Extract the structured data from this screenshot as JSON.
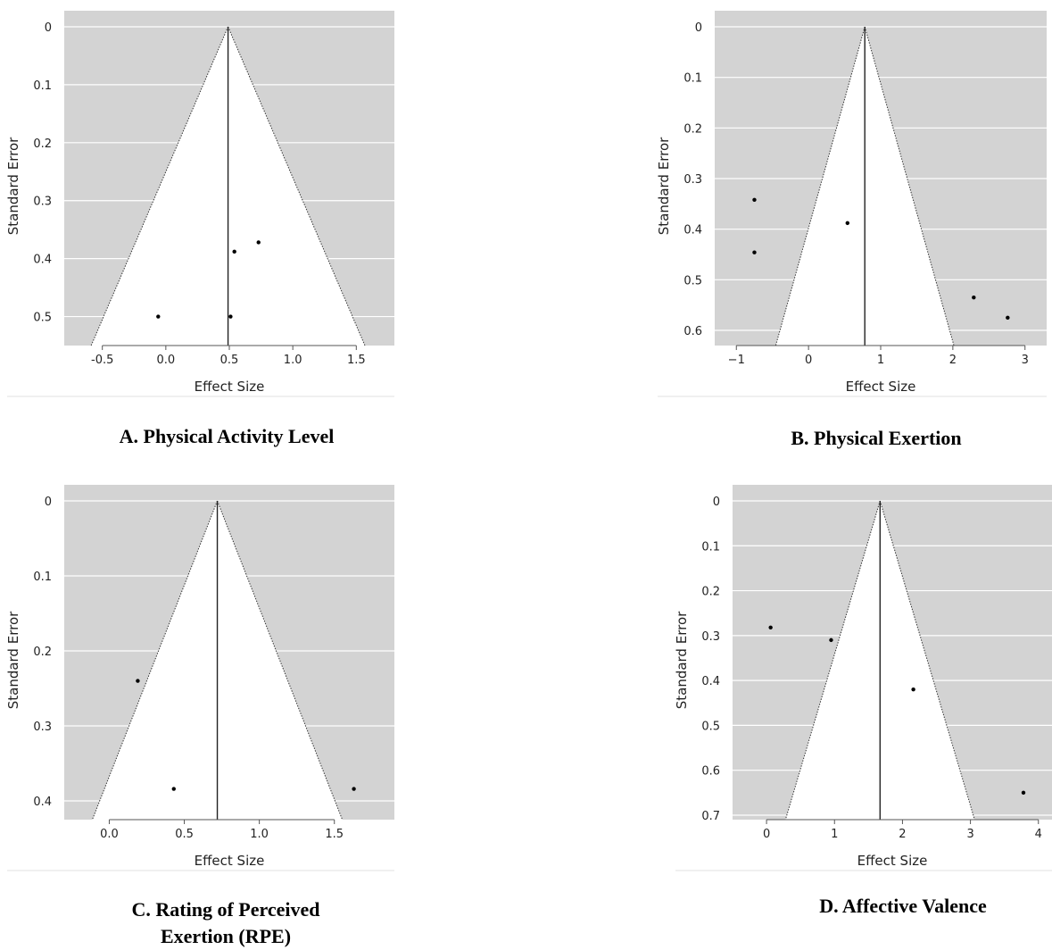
{
  "chart_data": [
    {
      "id": "A",
      "type": "scatter",
      "subtype": "funnel plot",
      "caption": "A. Physical Activity Level",
      "xlabel": "Effect Size",
      "ylabel": "Standard Error",
      "xlim": [
        -0.8,
        1.8
      ],
      "ylim": [
        0,
        0.55
      ],
      "y_reversed": true,
      "xticks": [
        "-0.5",
        "0.0",
        "0.5",
        "1.0",
        "1.5"
      ],
      "xtick_values": [
        -0.5,
        0.0,
        0.5,
        1.0,
        1.5
      ],
      "yticks": [
        "0",
        "0.1",
        "0.2",
        "0.3",
        "0.4",
        "0.5"
      ],
      "ytick_values": [
        0,
        0.1,
        0.2,
        0.3,
        0.4,
        0.5
      ],
      "summary_effect": 0.49,
      "points": [
        {
          "x": 0.54,
          "y": 0.388
        },
        {
          "x": 0.73,
          "y": 0.372
        },
        {
          "x": -0.06,
          "y": 0.5
        },
        {
          "x": 0.51,
          "y": 0.5
        }
      ],
      "colors": {
        "background": "#d3d3d3",
        "funnel": "#ffffff",
        "gridline": "#ffffff",
        "point": "#000000"
      }
    },
    {
      "id": "B",
      "type": "scatter",
      "subtype": "funnel plot",
      "caption": "B. Physical Exertion",
      "xlabel": "Effect Size",
      "ylabel": "Standard Error",
      "xlim": [
        -1.3,
        3.3
      ],
      "ylim": [
        0,
        0.63
      ],
      "y_reversed": true,
      "xticks": [
        "−1",
        "0",
        "1",
        "2",
        "3"
      ],
      "xtick_values": [
        -1,
        0,
        1,
        2,
        3
      ],
      "yticks": [
        "0",
        "0.1",
        "0.2",
        "0.3",
        "0.4",
        "0.5",
        "0.6"
      ],
      "ytick_values": [
        0,
        0.1,
        0.2,
        0.3,
        0.4,
        0.5,
        0.6
      ],
      "summary_effect": 0.78,
      "points": [
        {
          "x": -0.75,
          "y": 0.342
        },
        {
          "x": -0.75,
          "y": 0.446
        },
        {
          "x": 0.54,
          "y": 0.388
        },
        {
          "x": 2.29,
          "y": 0.535
        },
        {
          "x": 2.76,
          "y": 0.575
        }
      ],
      "colors": {
        "background": "#d3d3d3",
        "funnel": "#ffffff",
        "gridline": "#ffffff",
        "point": "#000000"
      }
    },
    {
      "id": "C",
      "type": "scatter",
      "subtype": "funnel plot",
      "caption": "C. Rating of Perceived Exertion (RPE)",
      "caption_lines": [
        "C. Rating of Perceived",
        "Exertion (RPE)"
      ],
      "xlabel": "Effect Size",
      "ylabel": "Standard Error",
      "xlim": [
        -0.3,
        1.9
      ],
      "ylim": [
        0,
        0.425
      ],
      "y_reversed": true,
      "xticks": [
        "0.0",
        "0.5",
        "1.0",
        "1.5"
      ],
      "xtick_values": [
        0.0,
        0.5,
        1.0,
        1.5
      ],
      "yticks": [
        "0",
        "0.1",
        "0.2",
        "0.3",
        "0.4"
      ],
      "ytick_values": [
        0,
        0.1,
        0.2,
        0.3,
        0.4
      ],
      "summary_effect": 0.72,
      "points": [
        {
          "x": 0.19,
          "y": 0.24
        },
        {
          "x": 0.43,
          "y": 0.384
        },
        {
          "x": 1.63,
          "y": 0.384
        }
      ],
      "colors": {
        "background": "#d3d3d3",
        "funnel": "#ffffff",
        "gridline": "#ffffff",
        "point": "#000000"
      }
    },
    {
      "id": "D",
      "type": "scatter",
      "subtype": "funnel plot",
      "caption": "D. Affective Valence",
      "xlabel": "Effect Size",
      "ylabel": "Standard Error",
      "xlim": [
        -0.5,
        4.2
      ],
      "ylim": [
        0,
        0.71
      ],
      "y_reversed": true,
      "xticks": [
        "0",
        "1",
        "2",
        "3",
        "4"
      ],
      "xtick_values": [
        0,
        1,
        2,
        3,
        4
      ],
      "yticks": [
        "0",
        "0.1",
        "0.2",
        "0.3",
        "0.4",
        "0.5",
        "0.6",
        "0.7"
      ],
      "ytick_values": [
        0,
        0.1,
        0.2,
        0.3,
        0.4,
        0.5,
        0.6,
        0.7
      ],
      "summary_effect": 1.67,
      "points": [
        {
          "x": 0.06,
          "y": 0.282
        },
        {
          "x": 0.95,
          "y": 0.31
        },
        {
          "x": 2.16,
          "y": 0.42
        },
        {
          "x": 3.78,
          "y": 0.65
        }
      ],
      "colors": {
        "background": "#d3d3d3",
        "funnel": "#ffffff",
        "gridline": "#ffffff",
        "point": "#000000"
      }
    }
  ]
}
